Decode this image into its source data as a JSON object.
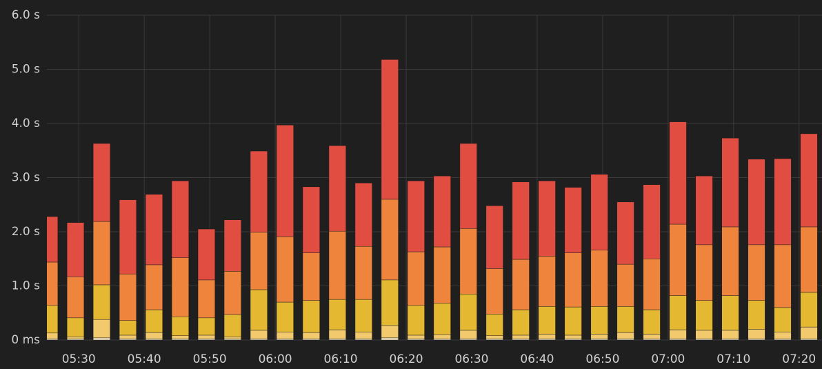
{
  "chart_data": {
    "type": "stacked-bar",
    "x": [
      325.5,
      329.5,
      333.5,
      337.5,
      341.5,
      345.5,
      349.5,
      353.5,
      357.5,
      361.5,
      365.5,
      369.5,
      373.5,
      377.5,
      381.5,
      385.5,
      389.5,
      393.5,
      397.5,
      401.5,
      405.5,
      409.5,
      413.5,
      417.5,
      421.5,
      425.5,
      429.5,
      433.5,
      437.5,
      441.5
    ],
    "series": [
      {
        "color": "#f9e9c8",
        "values": [
          0.02,
          0.02,
          0.04,
          0.02,
          0.02,
          0.02,
          0.02,
          0.02,
          0.02,
          0.02,
          0.02,
          0.02,
          0.02,
          0.04,
          0.02,
          0.02,
          0.02,
          0.02,
          0.02,
          0.02,
          0.02,
          0.02,
          0.02,
          0.02,
          0.02,
          0.02,
          0.02,
          0.02,
          0.02,
          0.02
        ]
      },
      {
        "color": "#f2c96d",
        "values": [
          0.11,
          0.04,
          0.34,
          0.07,
          0.12,
          0.06,
          0.07,
          0.04,
          0.16,
          0.13,
          0.12,
          0.17,
          0.13,
          0.23,
          0.07,
          0.08,
          0.16,
          0.06,
          0.07,
          0.09,
          0.07,
          0.09,
          0.12,
          0.09,
          0.17,
          0.16,
          0.16,
          0.18,
          0.13,
          0.22
        ]
      },
      {
        "color": "#e5b832",
        "values": [
          0.51,
          0.35,
          0.64,
          0.27,
          0.42,
          0.35,
          0.32,
          0.41,
          0.75,
          0.55,
          0.59,
          0.56,
          0.6,
          0.84,
          0.55,
          0.58,
          0.67,
          0.4,
          0.47,
          0.51,
          0.52,
          0.51,
          0.48,
          0.45,
          0.63,
          0.55,
          0.64,
          0.53,
          0.45,
          0.64
        ]
      },
      {
        "color": "#ef843c",
        "values": [
          0.8,
          0.76,
          1.17,
          0.86,
          0.83,
          1.09,
          0.7,
          0.8,
          1.06,
          1.21,
          0.88,
          1.26,
          0.98,
          1.49,
          0.99,
          1.04,
          1.21,
          0.84,
          0.93,
          0.93,
          1.0,
          1.04,
          0.78,
          0.94,
          1.32,
          1.03,
          1.27,
          1.03,
          1.16,
          1.21
        ]
      },
      {
        "color": "#e24d42",
        "values": [
          0.84,
          1.0,
          1.44,
          1.37,
          1.3,
          1.42,
          0.94,
          0.95,
          1.5,
          2.06,
          1.22,
          1.58,
          1.17,
          2.58,
          1.31,
          1.31,
          1.57,
          1.16,
          1.43,
          1.39,
          1.21,
          1.4,
          1.15,
          1.37,
          1.89,
          1.27,
          1.64,
          1.58,
          1.59,
          1.72
        ]
      }
    ],
    "xlim": [
      324.5,
      443.5
    ],
    "xticks": [
      {
        "value": 330,
        "label": "05:30"
      },
      {
        "value": 340,
        "label": "05:40"
      },
      {
        "value": 350,
        "label": "05:50"
      },
      {
        "value": 360,
        "label": "06:00"
      },
      {
        "value": 370,
        "label": "06:10"
      },
      {
        "value": 380,
        "label": "06:20"
      },
      {
        "value": 390,
        "label": "06:30"
      },
      {
        "value": 400,
        "label": "06:40"
      },
      {
        "value": 410,
        "label": "06:50"
      },
      {
        "value": 420,
        "label": "07:00"
      },
      {
        "value": 430,
        "label": "07:10"
      },
      {
        "value": 440,
        "label": "07:20"
      }
    ],
    "ylim": [
      0,
      6
    ],
    "yticks": [
      {
        "value": 0,
        "label": "0 ms"
      },
      {
        "value": 1,
        "label": "1.0 s"
      },
      {
        "value": 2,
        "label": "2.0 s"
      },
      {
        "value": 3,
        "label": "3.0 s"
      },
      {
        "value": 4,
        "label": "4.0 s"
      },
      {
        "value": 5,
        "label": "5.0 s"
      },
      {
        "value": 6,
        "label": "6.0 s"
      }
    ],
    "grid": true
  }
}
